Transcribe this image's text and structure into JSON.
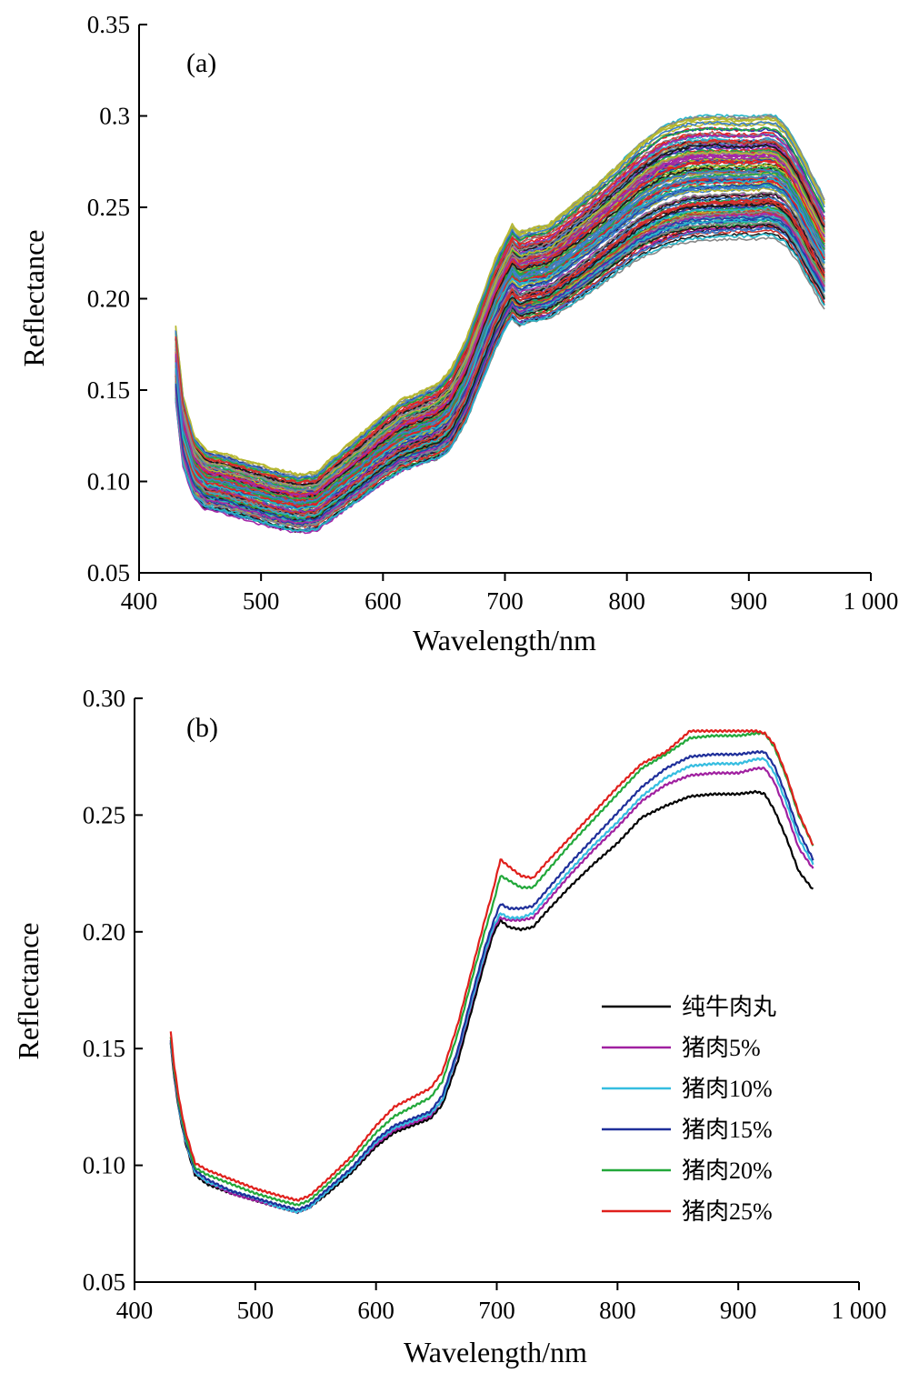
{
  "chart_data": [
    {
      "type": "line",
      "panel_label": "(a)",
      "title": "",
      "xlabel": "Wavelength/nm",
      "ylabel": "Reflectance",
      "xlim": [
        400,
        1000
      ],
      "ylim": [
        0.05,
        0.35
      ],
      "xticks": [
        400,
        500,
        600,
        700,
        800,
        900,
        1000
      ],
      "xtick_labels": [
        "400",
        "500",
        "600",
        "700",
        "800",
        "900",
        "1 000"
      ],
      "yticks": [
        0.05,
        0.1,
        0.15,
        0.2,
        0.25,
        0.3,
        0.35
      ],
      "ytick_labels": [
        "0.05",
        "0.10",
        "0.15",
        "0.20",
        "0.25",
        "0.3",
        "0.35"
      ],
      "grid": false,
      "legend": "none",
      "wavelength_range": [
        430,
        962
      ],
      "spectra_count": 150,
      "reference_spectrum": {
        "x": [
          430,
          436,
          445,
          455,
          470,
          490,
          510,
          530,
          545,
          560,
          580,
          600,
          615,
          630,
          645,
          655,
          668,
          680,
          692,
          700,
          706,
          712,
          720,
          735,
          750,
          770,
          790,
          810,
          830,
          850,
          870,
          890,
          905,
          915,
          922,
          930,
          940,
          950,
          962
        ],
        "y": [
          0.165,
          0.128,
          0.108,
          0.101,
          0.099,
          0.095,
          0.091,
          0.088,
          0.089,
          0.097,
          0.107,
          0.118,
          0.125,
          0.129,
          0.133,
          0.139,
          0.155,
          0.176,
          0.197,
          0.208,
          0.215,
          0.211,
          0.213,
          0.215,
          0.222,
          0.232,
          0.243,
          0.254,
          0.262,
          0.266,
          0.267,
          0.267,
          0.267,
          0.268,
          0.267,
          0.263,
          0.253,
          0.24,
          0.225
        ]
      },
      "spread_y": [
        0.02,
        0.019,
        0.017,
        0.016,
        0.016,
        0.016,
        0.016,
        0.016,
        0.016,
        0.017,
        0.018,
        0.019,
        0.02,
        0.02,
        0.021,
        0.022,
        0.023,
        0.024,
        0.025,
        0.025,
        0.026,
        0.026,
        0.026,
        0.026,
        0.027,
        0.028,
        0.029,
        0.031,
        0.033,
        0.033,
        0.033,
        0.032,
        0.032,
        0.032,
        0.032,
        0.031,
        0.03,
        0.029,
        0.028
      ],
      "series_colors": [
        "#1a1a1a",
        "#e32222",
        "#2540a8",
        "#1fa64a",
        "#26b6c8",
        "#a428a8",
        "#b6b830",
        "#3a7fc8",
        "#888888",
        "#d0342c"
      ]
    },
    {
      "type": "line",
      "panel_label": "(b)",
      "title": "",
      "xlabel": "Wavelength/nm",
      "ylabel": "Reflectance",
      "xlim": [
        400,
        1000
      ],
      "ylim": [
        0.05,
        0.3
      ],
      "xticks": [
        400,
        500,
        600,
        700,
        800,
        900,
        1000
      ],
      "xtick_labels": [
        "400",
        "500",
        "600",
        "700",
        "800",
        "900",
        "1 000"
      ],
      "yticks": [
        0.05,
        0.1,
        0.15,
        0.2,
        0.25,
        0.3
      ],
      "ytick_labels": [
        "0.05",
        "0.10",
        "0.15",
        "0.20",
        "0.25",
        "0.30"
      ],
      "grid": false,
      "legend": "bottom-right",
      "x": [
        430,
        433,
        437,
        442,
        450,
        460,
        480,
        500,
        520,
        535,
        545,
        560,
        580,
        600,
        615,
        630,
        645,
        655,
        668,
        680,
        690,
        697,
        703,
        710,
        720,
        730,
        740,
        760,
        780,
        800,
        820,
        840,
        860,
        880,
        900,
        915,
        922,
        930,
        940,
        950,
        962
      ],
      "series": [
        {
          "name": "纯牛肉丸",
          "color": "#000000",
          "values": [
            0.152,
            0.137,
            0.123,
            0.11,
            0.096,
            0.092,
            0.088,
            0.085,
            0.082,
            0.08,
            0.082,
            0.088,
            0.097,
            0.108,
            0.114,
            0.117,
            0.12,
            0.126,
            0.145,
            0.168,
            0.187,
            0.199,
            0.205,
            0.202,
            0.201,
            0.202,
            0.208,
            0.219,
            0.229,
            0.238,
            0.249,
            0.254,
            0.258,
            0.259,
            0.259,
            0.26,
            0.259,
            0.252,
            0.24,
            0.226,
            0.218
          ]
        },
        {
          "name": "猪肉5%",
          "color": "#a020a0",
          "values": [
            0.153,
            0.138,
            0.124,
            0.111,
            0.097,
            0.093,
            0.088,
            0.085,
            0.082,
            0.08,
            0.082,
            0.089,
            0.098,
            0.109,
            0.115,
            0.118,
            0.121,
            0.128,
            0.148,
            0.171,
            0.19,
            0.201,
            0.206,
            0.205,
            0.205,
            0.206,
            0.212,
            0.224,
            0.235,
            0.245,
            0.256,
            0.263,
            0.267,
            0.268,
            0.268,
            0.27,
            0.27,
            0.264,
            0.251,
            0.236,
            0.227
          ]
        },
        {
          "name": "猪肉10%",
          "color": "#35bde0",
          "values": [
            0.153,
            0.139,
            0.124,
            0.111,
            0.097,
            0.093,
            0.089,
            0.086,
            0.082,
            0.08,
            0.082,
            0.089,
            0.098,
            0.11,
            0.116,
            0.119,
            0.122,
            0.128,
            0.149,
            0.172,
            0.191,
            0.202,
            0.208,
            0.206,
            0.206,
            0.208,
            0.214,
            0.226,
            0.237,
            0.247,
            0.258,
            0.266,
            0.271,
            0.272,
            0.272,
            0.274,
            0.274,
            0.268,
            0.255,
            0.24,
            0.229
          ]
        },
        {
          "name": "猪肉15%",
          "color": "#1f2f9a",
          "values": [
            0.154,
            0.139,
            0.125,
            0.112,
            0.098,
            0.094,
            0.089,
            0.086,
            0.083,
            0.081,
            0.083,
            0.09,
            0.099,
            0.111,
            0.117,
            0.12,
            0.123,
            0.13,
            0.15,
            0.174,
            0.193,
            0.204,
            0.212,
            0.21,
            0.21,
            0.211,
            0.217,
            0.229,
            0.24,
            0.251,
            0.262,
            0.27,
            0.275,
            0.276,
            0.276,
            0.277,
            0.277,
            0.271,
            0.258,
            0.243,
            0.231
          ]
        },
        {
          "name": "猪肉20%",
          "color": "#22a83a",
          "values": [
            0.155,
            0.14,
            0.126,
            0.113,
            0.099,
            0.096,
            0.092,
            0.088,
            0.085,
            0.083,
            0.085,
            0.092,
            0.102,
            0.114,
            0.121,
            0.125,
            0.129,
            0.136,
            0.157,
            0.181,
            0.2,
            0.212,
            0.224,
            0.222,
            0.219,
            0.219,
            0.225,
            0.237,
            0.248,
            0.259,
            0.27,
            0.276,
            0.283,
            0.284,
            0.284,
            0.285,
            0.285,
            0.279,
            0.266,
            0.25,
            0.237
          ]
        },
        {
          "name": "猪肉25%",
          "color": "#e0201c",
          "values": [
            0.157,
            0.142,
            0.128,
            0.115,
            0.101,
            0.098,
            0.094,
            0.09,
            0.087,
            0.085,
            0.087,
            0.094,
            0.104,
            0.117,
            0.125,
            0.129,
            0.133,
            0.14,
            0.161,
            0.185,
            0.205,
            0.218,
            0.231,
            0.228,
            0.224,
            0.223,
            0.229,
            0.24,
            0.251,
            0.262,
            0.272,
            0.277,
            0.286,
            0.286,
            0.286,
            0.286,
            0.285,
            0.28,
            0.267,
            0.251,
            0.237
          ]
        }
      ]
    }
  ]
}
